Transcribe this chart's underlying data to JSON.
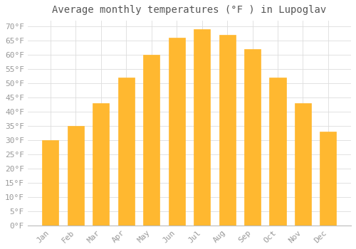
{
  "title": "Average monthly temperatures (°F ) in Lupoglav",
  "months": [
    "Jan",
    "Feb",
    "Mar",
    "Apr",
    "May",
    "Jun",
    "Jul",
    "Aug",
    "Sep",
    "Oct",
    "Nov",
    "Dec"
  ],
  "values": [
    30,
    35,
    43,
    52,
    60,
    66,
    69,
    67,
    62,
    52,
    43,
    33
  ],
  "bar_color_top": "#FFC020",
  "bar_color_bottom": "#FF9500",
  "background_color": "#FFFFFF",
  "grid_color": "#DDDDDD",
  "yticks": [
    0,
    5,
    10,
    15,
    20,
    25,
    30,
    35,
    40,
    45,
    50,
    55,
    60,
    65,
    70
  ],
  "ylim": [
    0,
    72
  ],
  "title_fontsize": 10,
  "tick_fontsize": 8,
  "tick_color": "#999999",
  "title_color": "#555555"
}
